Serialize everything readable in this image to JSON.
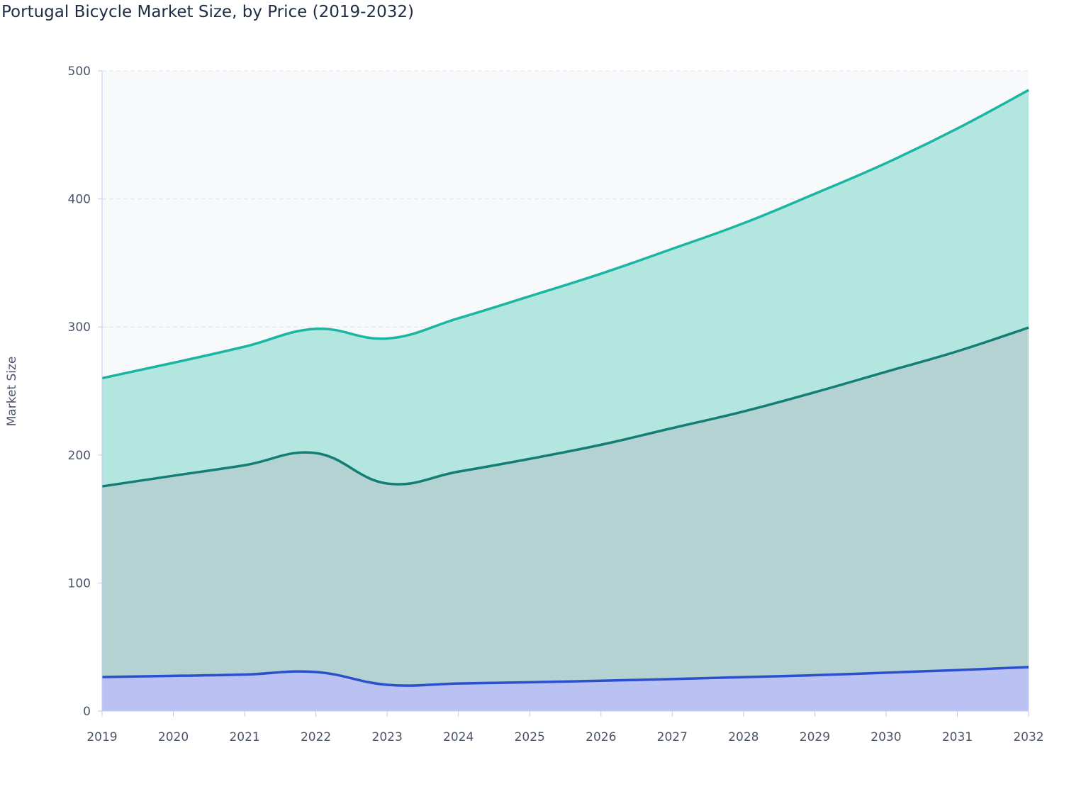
{
  "chart_data": {
    "type": "area",
    "stacked": true,
    "title": "Portugal Bicycle Market Size, by Price (2019-2032)",
    "xlabel": "",
    "ylabel": "Market Size",
    "ylim": [
      0,
      500
    ],
    "yticks": [
      0,
      100,
      200,
      300,
      400,
      500
    ],
    "grid": true,
    "legend": "none",
    "x": [
      2019,
      2020,
      2021,
      2022,
      2023,
      2024,
      2025,
      2026,
      2027,
      2028,
      2029,
      2030,
      2031,
      2032
    ],
    "series": [
      {
        "values": [
          26.6,
          27.5,
          28.5,
          30.5,
          20.5,
          21.5,
          22.5,
          23.7,
          25.0,
          26.5,
          28.0,
          30.0,
          32.0,
          34.3
        ],
        "line_color": "#2a4fcf",
        "fill_color": "#b9c2f2"
      },
      {
        "values": [
          148.9,
          156.3,
          163.5,
          171.0,
          157.2,
          165.5,
          174.5,
          184.3,
          196.0,
          207.5,
          221.0,
          235.0,
          249.0,
          265.2
        ],
        "line_color": "#127e74",
        "fill_color": "#b4d2d2"
      },
      {
        "values": [
          84.5,
          88.2,
          92.6,
          97.0,
          113.3,
          119.8,
          127.0,
          133.6,
          140.0,
          147.0,
          155.0,
          163.0,
          174.0,
          185.5
        ],
        "line_color": "#1ab5a3",
        "fill_color": "#b4e6e0"
      }
    ]
  }
}
